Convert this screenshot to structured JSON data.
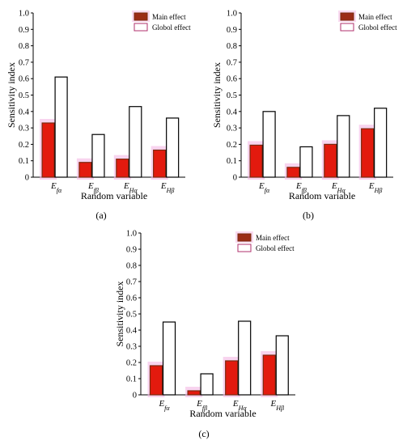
{
  "colors": {
    "main_fill": "#e31a0e",
    "main_border": "#7a2a10",
    "global_fill": "#ffffff",
    "global_border": "#000000",
    "glow": "#f4b8e4"
  },
  "chart_data": [
    {
      "type": "bar",
      "panel_label": "(a)",
      "categories": [
        "Efα",
        "Efβ",
        "EHα",
        "EHβ"
      ],
      "series": [
        {
          "name": "Main effect",
          "values": [
            0.33,
            0.09,
            0.11,
            0.165
          ]
        },
        {
          "name": "Globol effect",
          "values": [
            0.61,
            0.26,
            0.43,
            0.36
          ]
        }
      ],
      "xlabel": "Random variable",
      "ylabel": "Sensitivity index",
      "ylim": [
        0,
        1.0
      ],
      "yticks": [
        "0",
        "0.1",
        "0.2",
        "0.3",
        "0.4",
        "0.5",
        "0.6",
        "0.7",
        "0.8",
        "0.9",
        "1.0"
      ],
      "legend_position": "top-right",
      "grid": false
    },
    {
      "type": "bar",
      "panel_label": "(b)",
      "categories": [
        "Efα",
        "Efβ",
        "EHα",
        "EHβ"
      ],
      "series": [
        {
          "name": "Main effect",
          "values": [
            0.195,
            0.06,
            0.2,
            0.295
          ]
        },
        {
          "name": "Globol effect",
          "values": [
            0.4,
            0.185,
            0.375,
            0.42
          ]
        }
      ],
      "xlabel": "Random variable",
      "ylabel": "Sensitivity index",
      "ylim": [
        0,
        1.0
      ],
      "yticks": [
        "0",
        "0.1",
        "0.2",
        "0.3",
        "0.4",
        "0.5",
        "0.6",
        "0.7",
        "0.8",
        "0.9",
        "1.0"
      ],
      "legend_position": "top-right",
      "grid": false
    },
    {
      "type": "bar",
      "panel_label": "(c)",
      "categories": [
        "Efα",
        "Efβ",
        "EHα",
        "EHβ"
      ],
      "series": [
        {
          "name": "Main effect",
          "values": [
            0.18,
            0.025,
            0.21,
            0.245
          ]
        },
        {
          "name": "Globol effect",
          "values": [
            0.45,
            0.13,
            0.455,
            0.365
          ]
        }
      ],
      "xlabel": "Random variable",
      "ylabel": "Sensitivity index",
      "ylim": [
        0,
        1.0
      ],
      "yticks": [
        "0",
        "0.1",
        "0.2",
        "0.3",
        "0.4",
        "0.5",
        "0.6",
        "0.7",
        "0.8",
        "0.9",
        "1.0"
      ],
      "legend_position": "top-right",
      "grid": false
    }
  ]
}
